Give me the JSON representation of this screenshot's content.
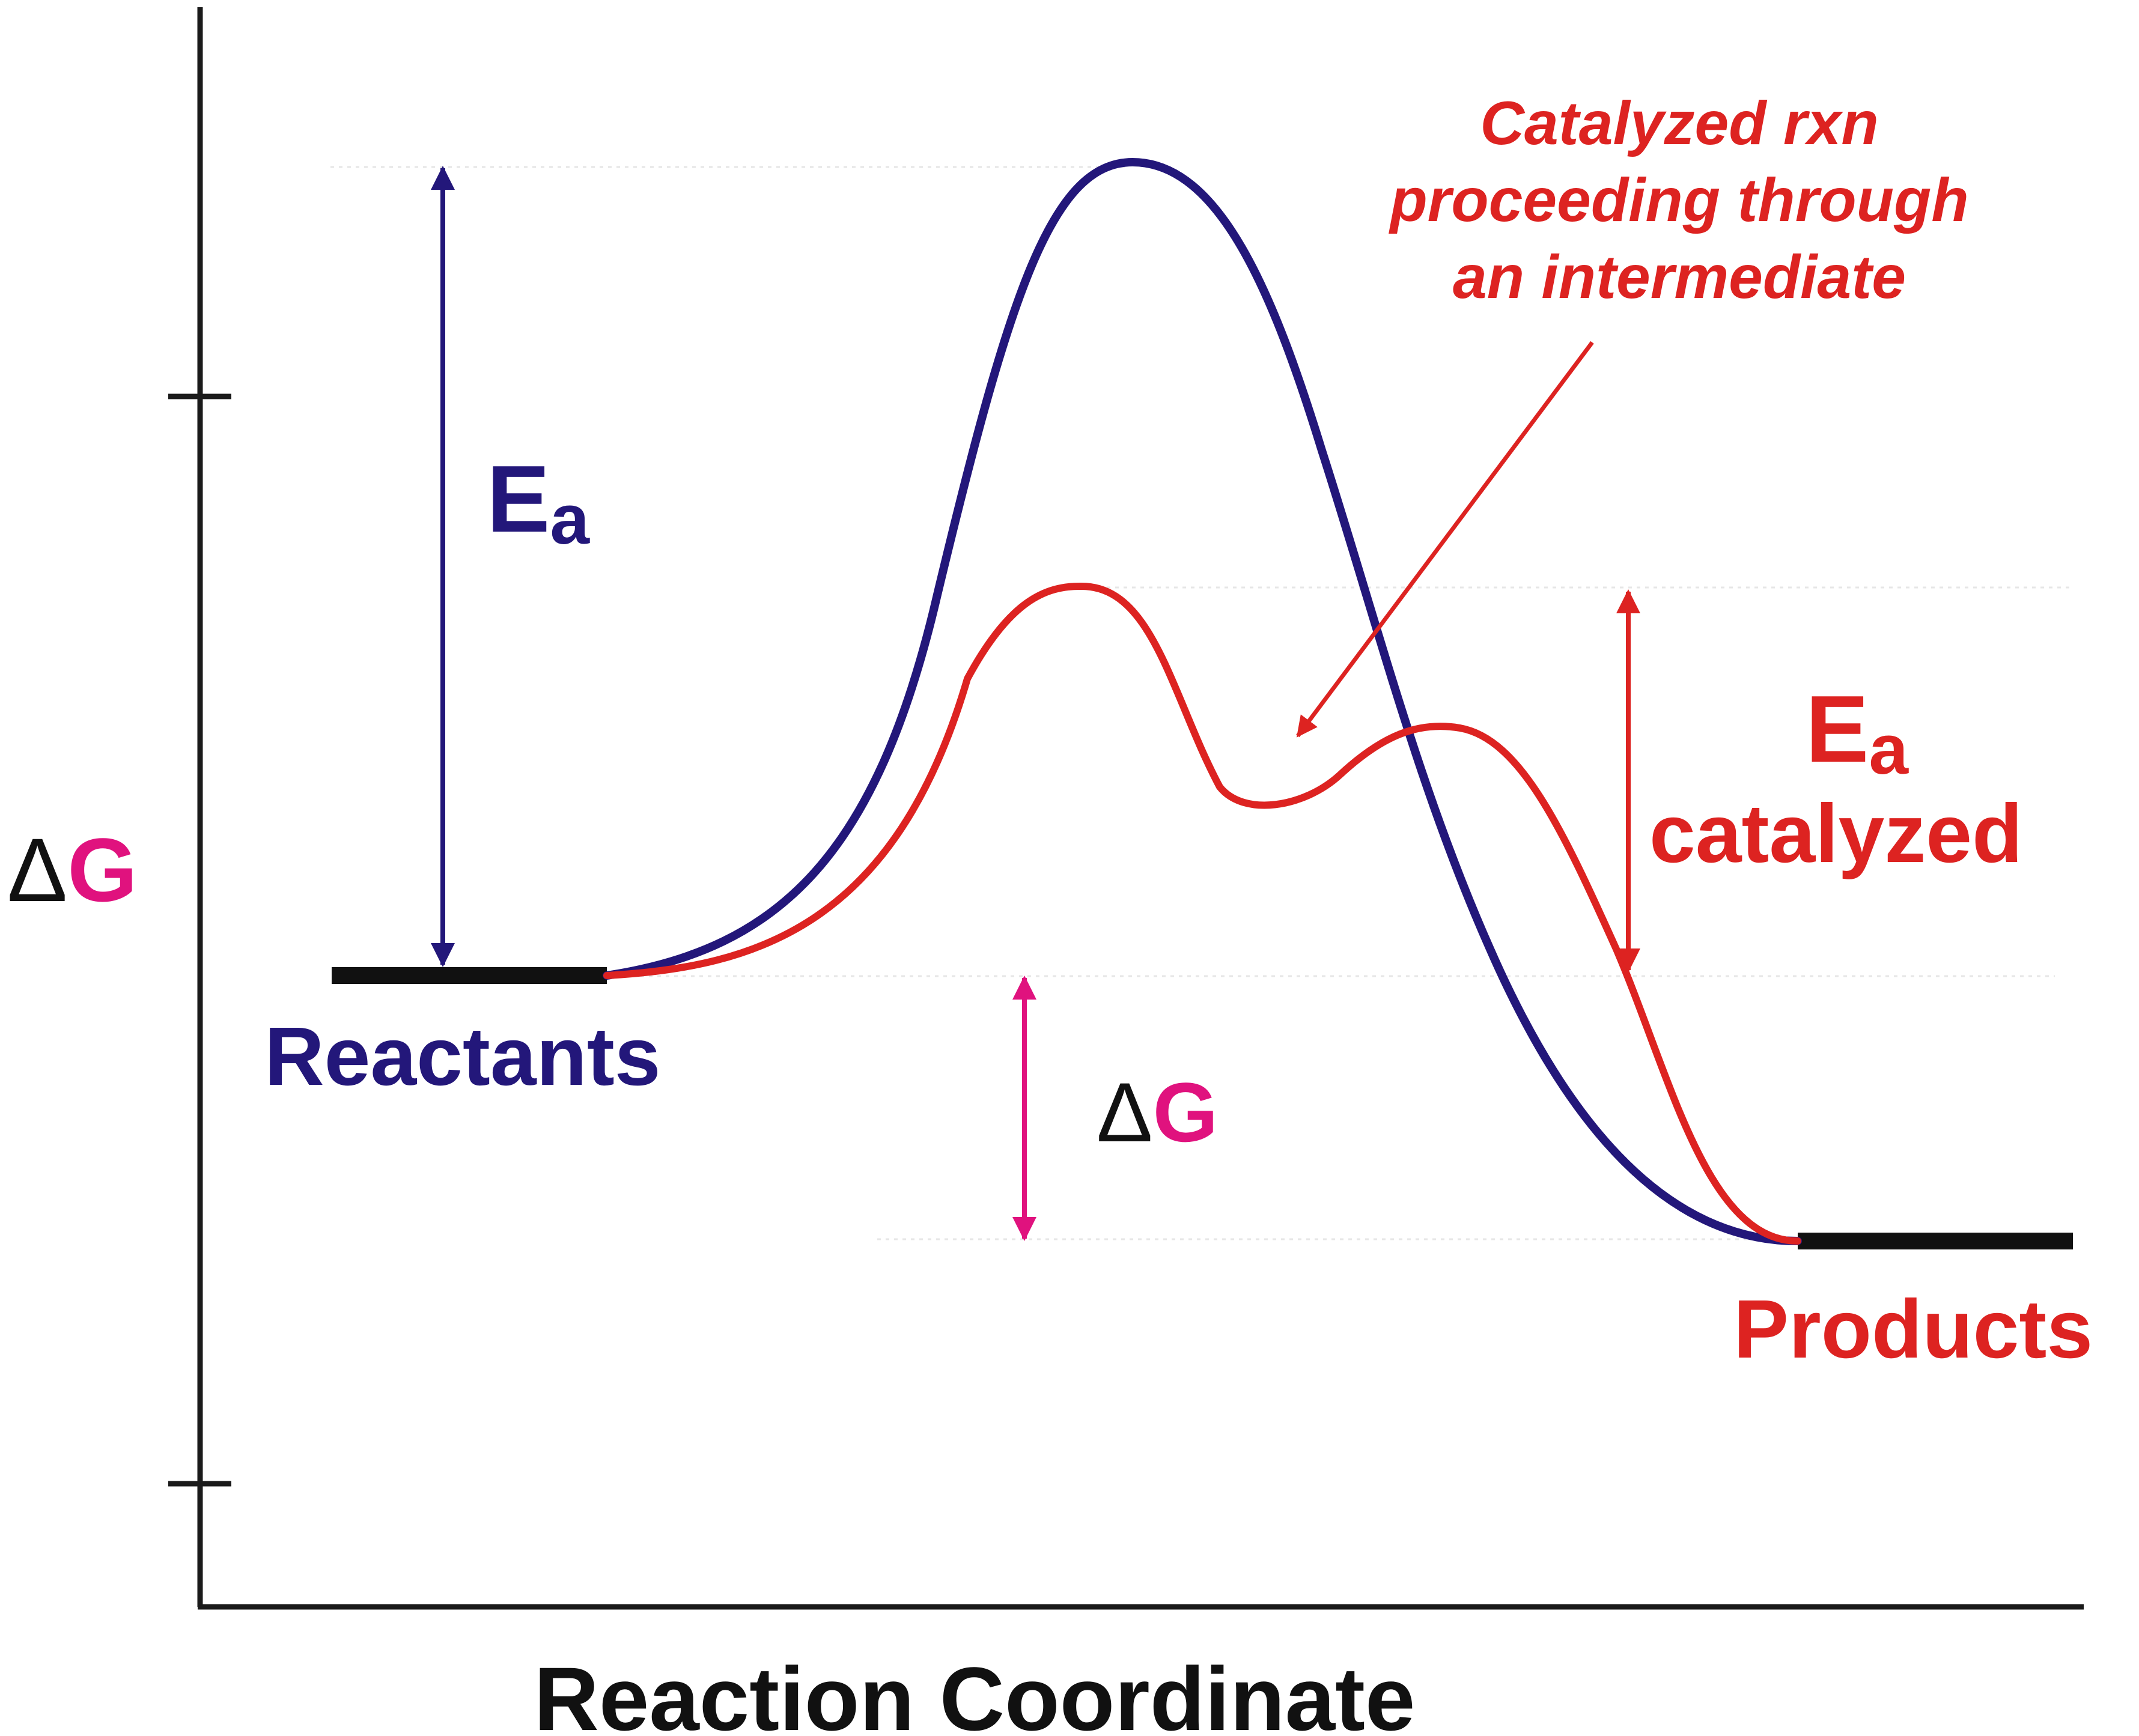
{
  "axes": {
    "y_symbol": "Δ",
    "y_letter": "G",
    "x_label": "Reaction Coordinate"
  },
  "labels": {
    "reactants": "Reactants",
    "products": "Products",
    "ea_main": "E",
    "ea_sub": "a",
    "ea_cat_main": "E",
    "ea_cat_sub": "a",
    "ea_cat_word": "catalyzed",
    "dg_symbol": "Δ",
    "dg_letter": "G",
    "annotation": [
      "Catalyzed rxn",
      "proceeding through",
      "an intermediate"
    ]
  },
  "colors": {
    "uncatalyzed": "#23177a",
    "catalyzed": "#dd2321",
    "delta_g": "#e0127e",
    "axis": "#1a1a1a",
    "levels": "#111111"
  }
}
